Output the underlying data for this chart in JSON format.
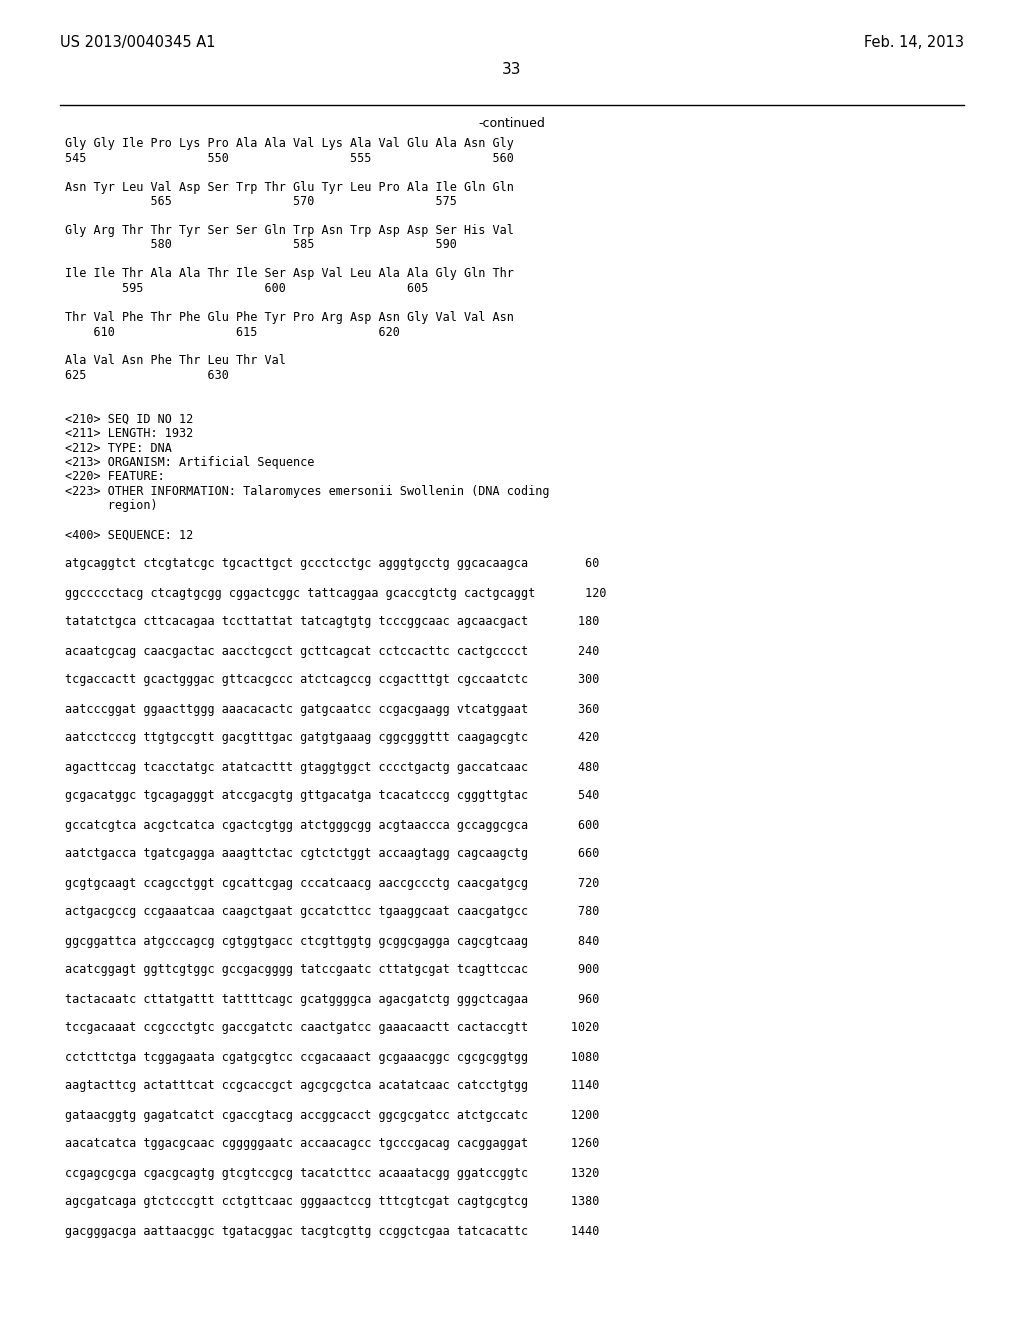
{
  "header_left": "US 2013/0040345 A1",
  "header_right": "Feb. 14, 2013",
  "page_number": "33",
  "continued_label": "-continued",
  "background_color": "#ffffff",
  "text_color": "#000000",
  "font_family": "monospace",
  "header_fontsize": 10.5,
  "body_fontsize": 8.5,
  "page_num_fontsize": 11,
  "continued_fontsize": 9,
  "lines": [
    "Gly Gly Ile Pro Lys Pro Ala Ala Val Lys Ala Val Glu Ala Asn Gly",
    "545                 550                 555                 560",
    "",
    "Asn Tyr Leu Val Asp Ser Trp Thr Glu Tyr Leu Pro Ala Ile Gln Gln",
    "            565                 570                 575",
    "",
    "Gly Arg Thr Thr Tyr Ser Ser Gln Trp Asn Trp Asp Asp Ser His Val",
    "            580                 585                 590",
    "",
    "Ile Ile Thr Ala Ala Thr Ile Ser Asp Val Leu Ala Ala Gly Gln Thr",
    "        595                 600                 605",
    "",
    "Thr Val Phe Thr Phe Glu Phe Tyr Pro Arg Asp Asn Gly Val Val Asn",
    "    610                 615                 620",
    "",
    "Ala Val Asn Phe Thr Leu Thr Val",
    "625                 630",
    "",
    "",
    "<210> SEQ ID NO 12",
    "<211> LENGTH: 1932",
    "<212> TYPE: DNA",
    "<213> ORGANISM: Artificial Sequence",
    "<220> FEATURE:",
    "<223> OTHER INFORMATION: Talaromyces emersonii Swollenin (DNA coding",
    "      region)",
    "",
    "<400> SEQUENCE: 12",
    "",
    "atgcaggtct ctcgtatcgc tgcacttgct gccctcctgc agggtgcctg ggcacaagca        60",
    "",
    "ggccccctacg ctcagtgcgg cggactcggc tattcaggaa gcaccgtctg cactgcaggt       120",
    "",
    "tatatctgca cttcacagaa tccttattat tatcagtgtg tcccggcaac agcaacgact       180",
    "",
    "acaatcgcag caacgactac aacctcgcct gcttcagcat cctccacttc cactgcccct       240",
    "",
    "tcgaccactt gcactgggac gttcacgccc atctcagccg ccgactttgt cgccaatctc       300",
    "",
    "aatcccggat ggaacttggg aaacacactc gatgcaatcc ccgacgaagg vtcatggaat       360",
    "",
    "aatcctcccg ttgtgccgtt gacgtttgac gatgtgaaag cggcgggttt caagagcgtc       420",
    "",
    "agacttccag tcacctatgc atatcacttt gtaggtggct cccctgactg gaccatcaac       480",
    "",
    "gcgacatggc tgcagagggt atccgacgtg gttgacatga tcacatcccg cgggttgtac       540",
    "",
    "gccatcgtca acgctcatca cgactcgtgg atctgggcgg acgtaaccca gccaggcgca       600",
    "",
    "aatctgacca tgatcgagga aaagttctac cgtctctggt accaagtagg cagcaagctg       660",
    "",
    "gcgtgcaagt ccagcctggt cgcattcgag cccatcaacg aaccgccctg caacgatgcg       720",
    "",
    "actgacgccg ccgaaatcaa caagctgaat gccatcttcc tgaaggcaat caacgatgcc       780",
    "",
    "ggcggattca atgcccagcg cgtggtgacc ctcgttggtg gcggcgagga cagcgtcaag       840",
    "",
    "acatcggagt ggttcgtggc gccgacgggg tatccgaatc cttatgcgat tcagttccac       900",
    "",
    "tactacaatc cttatgattt tattttcagc gcatggggca agacgatctg gggctcagaa       960",
    "",
    "tccgacaaat ccgccctgtc gaccgatctc caactgatcc gaaacaactt cactaccgtt      1020",
    "",
    "cctcttctga tcggagaata cgatgcgtcc ccgacaaact gcgaaacggc cgcgcggtgg      1080",
    "",
    "aagtacttcg actatttcat ccgcaccgct agcgcgctca acatatcaac catcctgtgg      1140",
    "",
    "gataacggtg gagatcatct cgaccgtacg accggcacct ggcgcgatcc atctgccatc      1200",
    "",
    "aacatcatca tggacgcaac cgggggaatc accaacagcc tgcccgacag cacggaggat      1260",
    "",
    "ccgagcgcga cgacgcagtg gtcgtccgcg tacatcttcc acaaatacgg ggatccggtc      1320",
    "",
    "agcgatcaga gtctcccgtt cctgttcaac gggaactccg tttcgtcgat cagtgcgtcg      1380",
    "",
    "gacgggacga aattaacggc tgatacggac tacgtcgttg ccggctcgaa tatcacattc      1440"
  ]
}
